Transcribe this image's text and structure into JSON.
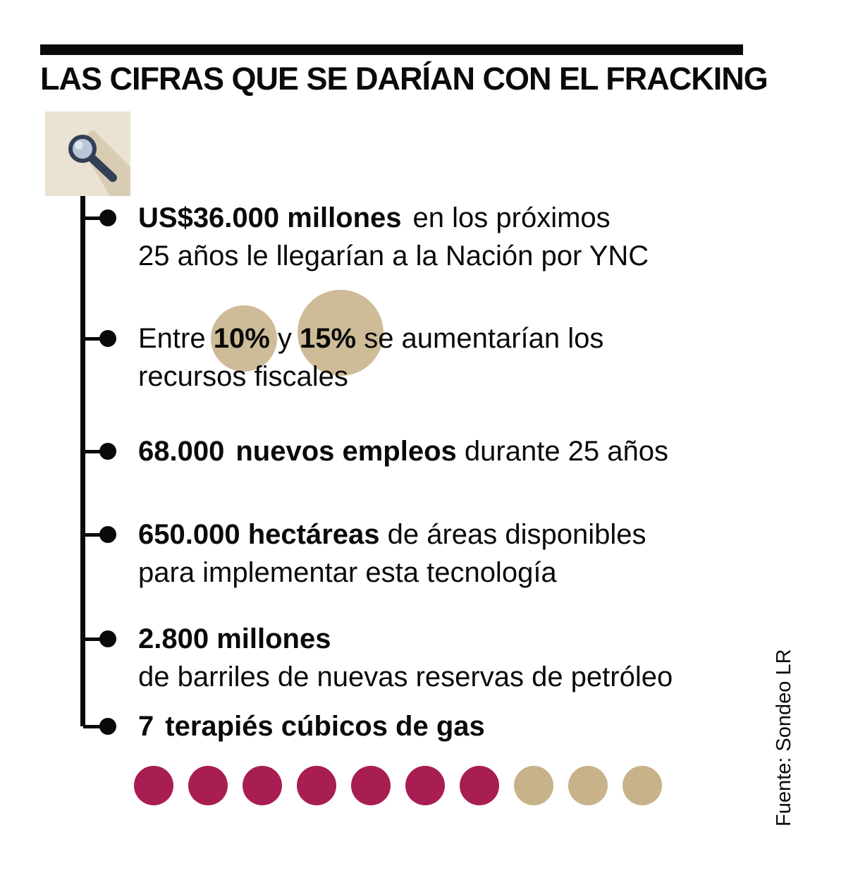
{
  "title": "LAS CIFRAS QUE SE DARÍAN CON EL FRACKING",
  "source_label": "Fuente: Sondeo LR",
  "icon": {
    "name": "magnifier-icon"
  },
  "colors": {
    "crimson": "#A81E52",
    "tan": "#C8B28A",
    "tan_light": "#CDBC97",
    "icon_box_bg": "#EAE2D2",
    "rule_black": "#0A0A0A"
  },
  "items": [
    {
      "segments": [
        {
          "text": "US$36.000 millones",
          "bold": true
        },
        {
          "text": "en los próximos",
          "bold": false
        }
      ],
      "line2": "25 años le llegarían a la Nación por YNC"
    },
    {
      "segments": [
        {
          "text": "Entre ",
          "bold": false
        },
        {
          "text": "10%",
          "bold": true
        },
        {
          "text": " y ",
          "bold": false
        },
        {
          "text": "15%",
          "bold": true
        },
        {
          "text": " se aumentarían los",
          "bold": false
        }
      ],
      "line2": "recursos fiscales"
    },
    {
      "segments": [
        {
          "text": "68.000",
          "bold": true
        },
        {
          "text": "nuevos empleos",
          "bold": true
        },
        {
          "text": " durante 25 años",
          "bold": false
        }
      ],
      "line2": ""
    },
    {
      "segments": [
        {
          "text": "650.000 hectáreas",
          "bold": true
        },
        {
          "text": " de áreas disponibles",
          "bold": false
        }
      ],
      "line2": "para implementar esta tecnología"
    },
    {
      "segments": [
        {
          "text": "2.800 millones",
          "bold": true
        }
      ],
      "line2": "de barriles de nuevas reservas de petróleo"
    },
    {
      "segments": [
        {
          "text": "7",
          "bold": true
        },
        {
          "text": "terapiés cúbicos de gas",
          "bold": true
        }
      ],
      "line2": ""
    }
  ],
  "dots": {
    "total": 10,
    "filled": 7
  },
  "chart_data": {
    "type": "pictogram",
    "title": "LAS CIFRAS QUE SE DARÍAN CON EL FRACKING",
    "stats": [
      {
        "value": "US$36.000 millones",
        "description": "en los próximos 25 años le llegarían a la Nación por YNC"
      },
      {
        "value": "10% a 15%",
        "description": "se aumentarían los recursos fiscales"
      },
      {
        "value": "68.000",
        "description": "nuevos empleos durante 25 años"
      },
      {
        "value": "650.000 hectáreas",
        "description": "de áreas disponibles para implementar esta tecnología"
      },
      {
        "value": "2.800 millones",
        "description": "de barriles de nuevas reservas de petróleo"
      },
      {
        "value": "7",
        "description": "terapiés cúbicos de gas"
      }
    ],
    "pictogram": {
      "total_units": 10,
      "highlighted_units": 7,
      "highlight_color": "#A81E52",
      "muted_color": "#C8B28A"
    },
    "source": "Fuente: Sondeo LR"
  }
}
